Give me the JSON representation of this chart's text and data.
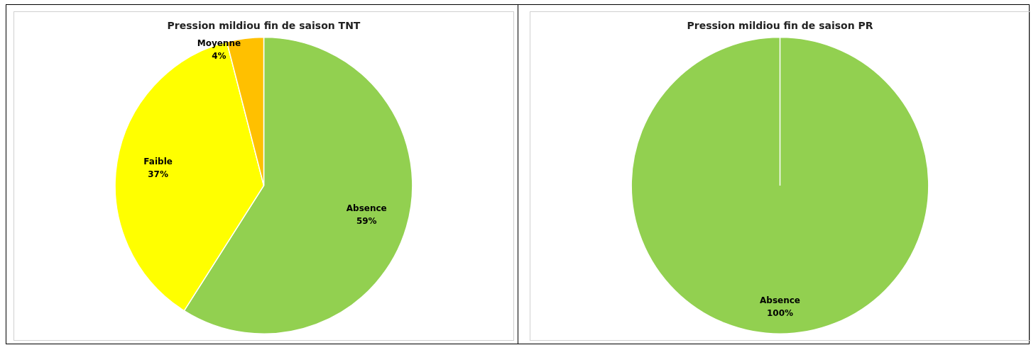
{
  "chart_data": [
    {
      "type": "pie",
      "title": "Pression mildiou fin de saison TNT",
      "categories": [
        "Absence",
        "Faible",
        "Moyenne"
      ],
      "values": [
        59,
        37,
        4
      ],
      "colors": [
        "#92d050",
        "#ffff00",
        "#ffc000"
      ],
      "value_labels": [
        "59%",
        "37%",
        "4%"
      ]
    },
    {
      "type": "pie",
      "title": "Pression mildiou fin de saison PR",
      "categories": [
        "Absence"
      ],
      "values": [
        100
      ],
      "colors": [
        "#92d050"
      ],
      "value_labels": [
        "100%"
      ]
    }
  ]
}
